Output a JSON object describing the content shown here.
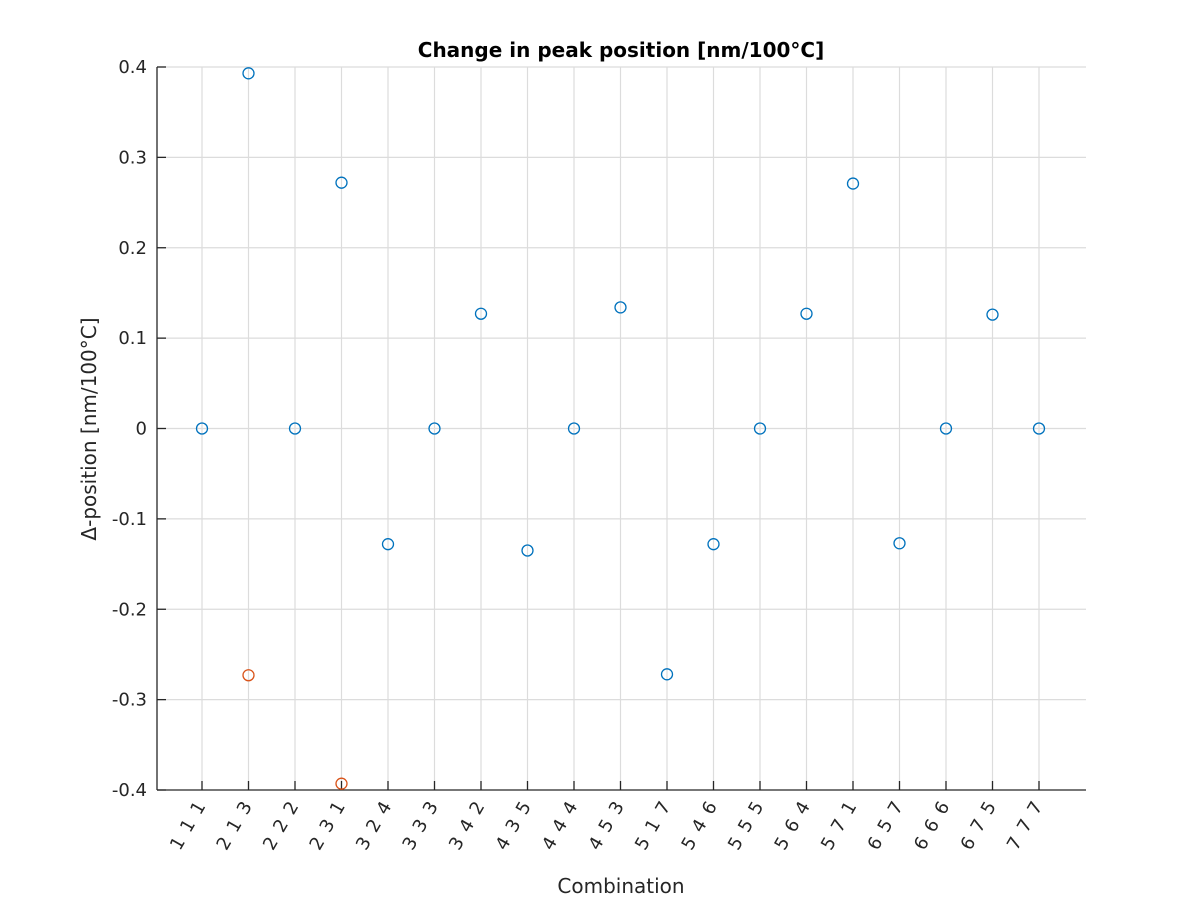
{
  "chart_data": {
    "type": "scatter",
    "title": "Change in peak position [nm/100°C]",
    "xlabel": "Combination",
    "ylabel": "Δ-position [nm/100°C]",
    "ylim": [
      -0.4,
      0.4
    ],
    "yticks": [
      -0.4,
      -0.3,
      -0.2,
      -0.1,
      0,
      0.1,
      0.2,
      0.3,
      0.4
    ],
    "ytick_labels": [
      "-0.4",
      "-0.3",
      "-0.2",
      "-0.1",
      "0",
      "0.1",
      "0.2",
      "0.3",
      "0.4"
    ],
    "categories": [
      "1 1 1",
      "2 1 3",
      "2 2 2",
      "2 3 1",
      "3 2 4",
      "3 3 3",
      "3 4 2",
      "4 3 5",
      "4 4 4",
      "4 5 3",
      "5 1 7",
      "5 4 6",
      "5 5 5",
      "5 6 4",
      "5 7 1",
      "6 5 7",
      "6 6 6",
      "6 7 5",
      "7 7 7"
    ],
    "grid": true,
    "series": [
      {
        "color": "#0072BD",
        "marker": "circle",
        "values": [
          0,
          0.393,
          0,
          0.272,
          -0.128,
          0,
          0.127,
          -0.135,
          0,
          0.134,
          -0.272,
          -0.128,
          0,
          0.127,
          0.271,
          -0.127,
          0,
          0.126,
          0
        ]
      },
      {
        "color": "#D95319",
        "marker": "circle",
        "values": [
          null,
          -0.273,
          null,
          -0.393,
          null,
          null,
          null,
          null,
          null,
          null,
          null,
          null,
          null,
          null,
          null,
          null,
          null,
          null,
          null
        ]
      }
    ]
  }
}
